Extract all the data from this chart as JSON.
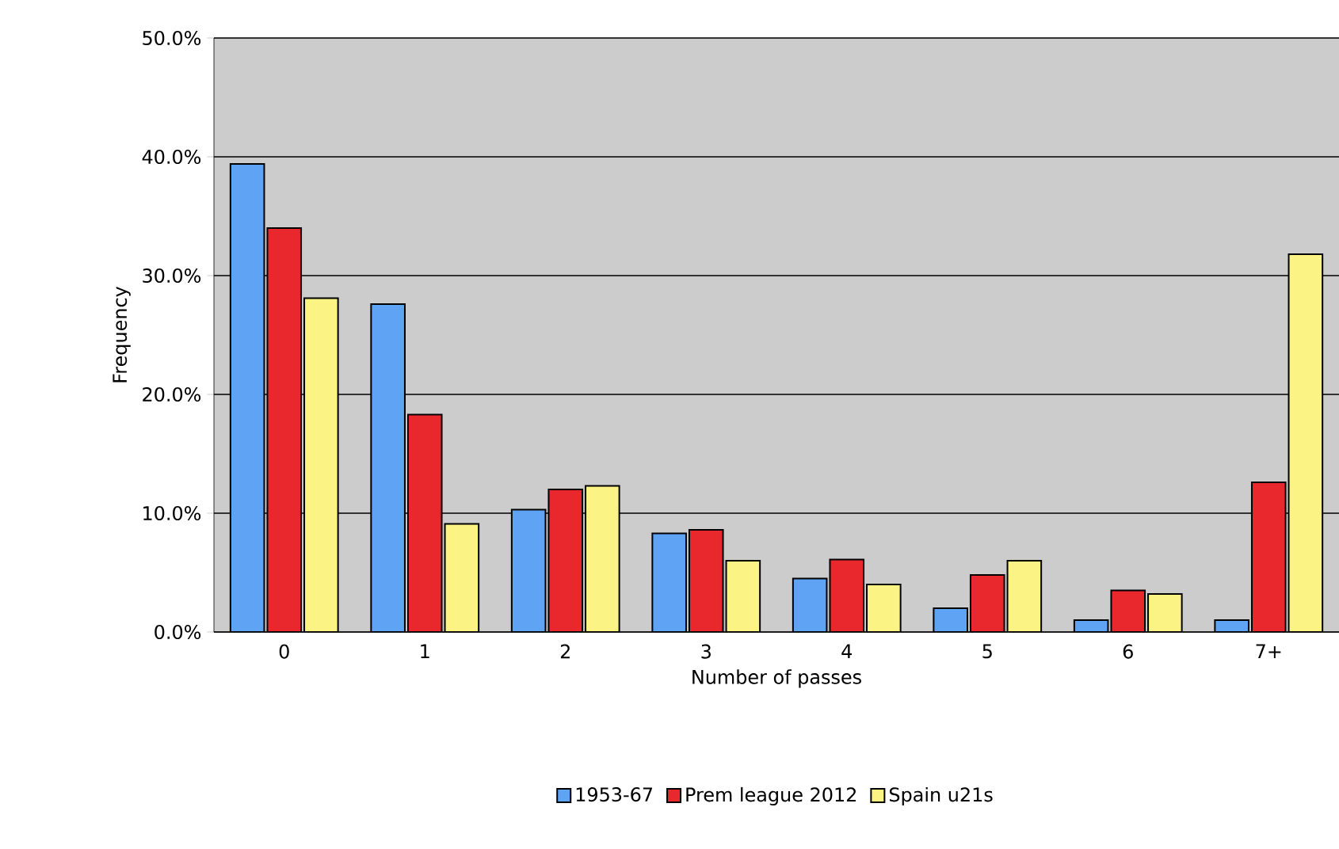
{
  "chart_data": {
    "type": "bar",
    "xlabel": "Number of passes",
    "ylabel": "Frequency",
    "categories": [
      "0",
      "1",
      "2",
      "3",
      "4",
      "5",
      "6",
      "7+"
    ],
    "series": [
      {
        "name": "1953-67",
        "color": "#5fa3f5",
        "values": [
          39.4,
          27.6,
          10.3,
          8.3,
          4.5,
          2.0,
          1.0,
          1.0
        ]
      },
      {
        "name": "Prem league 2012",
        "color": "#e8282c",
        "values": [
          34.0,
          18.3,
          12.0,
          8.6,
          6.1,
          4.8,
          3.5,
          12.6
        ]
      },
      {
        "name": "Spain  u21s",
        "color": "#fbf384",
        "values": [
          28.1,
          9.1,
          12.3,
          6.0,
          4.0,
          6.0,
          3.2,
          31.8
        ]
      }
    ],
    "ylim": [
      0,
      50
    ],
    "yticks": [
      {
        "value": 0,
        "label": "0.0%"
      },
      {
        "value": 10,
        "label": "10.0%"
      },
      {
        "value": 20,
        "label": "20.0%"
      },
      {
        "value": 30,
        "label": "30.0%"
      },
      {
        "value": 40,
        "label": "40.0%"
      },
      {
        "value": 50,
        "label": "50.0%"
      }
    ],
    "grid": "y",
    "legend": "bottom"
  }
}
